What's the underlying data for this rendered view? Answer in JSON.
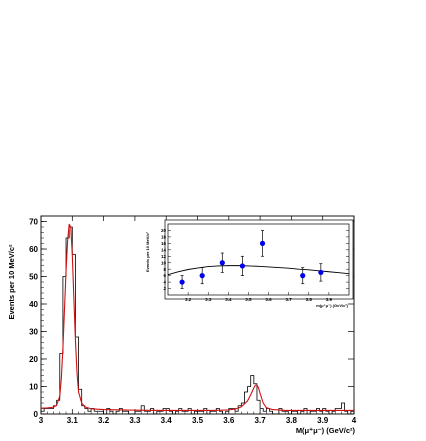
{
  "chart_data": [
    {
      "type": "line",
      "subtype": "histogram-with-fit",
      "xlabel": "M(μ⁺μ⁻) (GeV/c²)",
      "ylabel": "Events per 10 MeV/c²",
      "xlim": [
        3.0,
        4.0
      ],
      "ylim": [
        0,
        72
      ],
      "xticks": [
        3.0,
        3.1,
        3.2,
        3.3,
        3.4,
        3.5,
        3.6,
        3.7,
        3.8,
        3.9,
        4.0
      ],
      "xtick_labels": [
        "3",
        "3.1",
        "3.2",
        "3.3",
        "3.4",
        "3.5",
        "3.6",
        "3.7",
        "3.8",
        "3.9",
        "4"
      ],
      "yticks": [
        0,
        10,
        20,
        30,
        40,
        50,
        60,
        70
      ],
      "ytick_labels": [
        "0",
        "10",
        "20",
        "30",
        "40",
        "50",
        "60",
        "70"
      ],
      "grid": false,
      "legend": "none",
      "series": [
        {
          "style": "histogram",
          "color": "#000000",
          "bin_width": 0.01,
          "x": [
            3.005,
            3.015,
            3.025,
            3.035,
            3.045,
            3.055,
            3.065,
            3.075,
            3.085,
            3.095,
            3.105,
            3.115,
            3.125,
            3.135,
            3.145,
            3.155,
            3.165,
            3.175,
            3.185,
            3.195,
            3.205,
            3.215,
            3.225,
            3.235,
            3.245,
            3.255,
            3.265,
            3.275,
            3.285,
            3.295,
            3.305,
            3.315,
            3.325,
            3.335,
            3.345,
            3.355,
            3.365,
            3.375,
            3.385,
            3.395,
            3.405,
            3.415,
            3.425,
            3.435,
            3.445,
            3.455,
            3.465,
            3.475,
            3.485,
            3.495,
            3.505,
            3.515,
            3.525,
            3.535,
            3.545,
            3.555,
            3.565,
            3.575,
            3.585,
            3.595,
            3.605,
            3.615,
            3.625,
            3.635,
            3.645,
            3.655,
            3.665,
            3.675,
            3.685,
            3.695,
            3.705,
            3.715,
            3.725,
            3.735,
            3.745,
            3.755,
            3.765,
            3.775,
            3.785,
            3.795,
            3.805,
            3.815,
            3.825,
            3.835,
            3.845,
            3.855,
            3.865,
            3.875,
            3.885,
            3.895,
            3.905,
            3.915,
            3.925,
            3.935,
            3.945,
            3.955,
            3.965,
            3.975,
            3.985,
            3.995
          ],
          "values": [
            1,
            2,
            2,
            2,
            3,
            5,
            22,
            50,
            64,
            68,
            58,
            28,
            9,
            3,
            2,
            1,
            2,
            1,
            1,
            1,
            0,
            2,
            1,
            0,
            1,
            2,
            1,
            1,
            0,
            0,
            1,
            1,
            3,
            1,
            1,
            2,
            0,
            1,
            1,
            2,
            2,
            1,
            0,
            1,
            2,
            1,
            1,
            2,
            0,
            1,
            1,
            1,
            2,
            0,
            1,
            1,
            2,
            1,
            0,
            1,
            2,
            2,
            1,
            3,
            4,
            8,
            10,
            14,
            11,
            5,
            2,
            1,
            2,
            1,
            0,
            0,
            2,
            1,
            1,
            0,
            1,
            1,
            0,
            1,
            2,
            0,
            1,
            1,
            2,
            1,
            2,
            1,
            0,
            1,
            2,
            2,
            4,
            1,
            0,
            1
          ]
        },
        {
          "style": "fit-curve",
          "color": "#d01010",
          "x": [
            3.0,
            3.02,
            3.04,
            3.05,
            3.06,
            3.065,
            3.07,
            3.075,
            3.08,
            3.085,
            3.09,
            3.095,
            3.1,
            3.105,
            3.11,
            3.115,
            3.12,
            3.13,
            3.14,
            3.16,
            3.2,
            3.3,
            3.4,
            3.5,
            3.55,
            3.6,
            3.62,
            3.64,
            3.66,
            3.67,
            3.68,
            3.685,
            3.69,
            3.695,
            3.7,
            3.71,
            3.72,
            3.74,
            3.78,
            3.85,
            3.9,
            3.95,
            4.0
          ],
          "values": [
            2.1,
            2.2,
            2.5,
            3.2,
            6.5,
            13,
            24,
            38,
            52,
            63,
            69,
            68,
            58,
            42,
            27,
            15,
            8,
            4,
            2.6,
            1.9,
            1.6,
            1.4,
            1.3,
            1.3,
            1.3,
            1.5,
            1.8,
            2.6,
            4.8,
            7,
            9.5,
            10.5,
            10.5,
            9.5,
            7.5,
            4,
            2.3,
            1.6,
            1.3,
            1.3,
            1.3,
            1.3,
            1.3
          ]
        }
      ]
    },
    {
      "type": "scatter",
      "subtype": "inset-with-error-bars",
      "xlabel": "m(μ⁺μ⁻) (GeV/c²)",
      "ylabel": "Events per 10 MeV/c²",
      "xlim": [
        3.1,
        4.0
      ],
      "ylim": [
        0,
        22
      ],
      "xticks": [
        3.2,
        3.3,
        3.4,
        3.5,
        3.6,
        3.7,
        3.8,
        3.9
      ],
      "xtick_labels": [
        "3.2",
        "3.3",
        "3.4",
        "3.5",
        "3.6",
        "3.7",
        "3.8",
        "3.9"
      ],
      "yticks": [
        2,
        4,
        6,
        8,
        10,
        12,
        14,
        16,
        18,
        20
      ],
      "ytick_labels": [
        "2",
        "4",
        "6",
        "8",
        "10",
        "12",
        "14",
        "16",
        "18",
        "20"
      ],
      "grid": false,
      "legend": "none",
      "series": [
        {
          "style": "points",
          "color": "#0000ee",
          "x": [
            3.17,
            3.27,
            3.37,
            3.47,
            3.57,
            3.77,
            3.86
          ],
          "values": [
            4,
            6,
            10,
            9,
            16,
            6,
            7
          ],
          "err": [
            2.0,
            2.5,
            3.0,
            3.0,
            4.0,
            2.5,
            2.7
          ]
        },
        {
          "style": "fit-curve",
          "color": "#000000",
          "x": [
            3.1,
            3.15,
            3.2,
            3.25,
            3.3,
            3.35,
            3.4,
            3.45,
            3.5,
            3.55,
            3.6,
            3.65,
            3.7,
            3.75,
            3.8,
            3.85,
            3.9,
            3.95,
            4.0
          ],
          "values": [
            6.3,
            7.2,
            7.9,
            8.4,
            8.8,
            9.0,
            9.1,
            9.1,
            9.0,
            8.9,
            8.7,
            8.5,
            8.3,
            8.0,
            7.8,
            7.5,
            7.2,
            6.9,
            6.6
          ]
        }
      ]
    }
  ]
}
